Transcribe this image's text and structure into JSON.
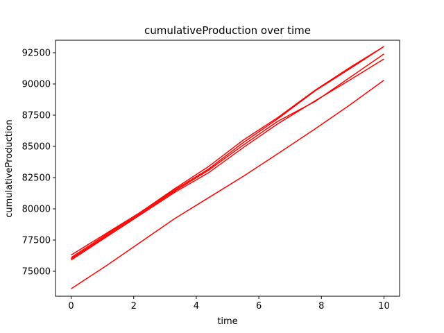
{
  "chart_data": {
    "type": "line",
    "title": "cumulativeProduction over time",
    "xlabel": "time",
    "ylabel": "cumulativeProduction",
    "xlim": [
      -0.5,
      10.5
    ],
    "ylim": [
      73000,
      93500
    ],
    "xticks": [
      0,
      2,
      4,
      6,
      8,
      10
    ],
    "xtick_labels": [
      "0",
      "2",
      "4",
      "6",
      "8",
      "10"
    ],
    "yticks": [
      75000,
      77500,
      80000,
      82500,
      85000,
      87500,
      90000,
      92500
    ],
    "ytick_labels": [
      "75000",
      "77500",
      "80000",
      "82500",
      "85000",
      "87500",
      "90000",
      "92500"
    ],
    "grid": false,
    "color": "#ff0000",
    "series": [
      {
        "x": [
          0,
          1.1,
          2.2,
          3.3,
          4.4,
          5.5,
          6.6,
          7.8,
          8.9,
          10
        ],
        "values": [
          76300,
          78000,
          79700,
          81500,
          83200,
          85300,
          87200,
          89450,
          91200,
          93000
        ]
      },
      {
        "x": [
          0,
          1.1,
          2.2,
          3.3,
          4.4,
          5.5,
          6.6,
          7.8,
          8.9,
          10
        ],
        "values": [
          76000,
          77800,
          79600,
          81400,
          83100,
          85100,
          87000,
          88600,
          90500,
          92400
        ]
      },
      {
        "x": [
          0,
          1.1,
          2.2,
          3.3,
          4.4,
          5.5,
          6.6,
          7.8,
          8.9,
          10
        ],
        "values": [
          75900,
          77700,
          79500,
          81300,
          82900,
          84900,
          86800,
          88650,
          90300,
          92000
        ]
      },
      {
        "x": [
          0,
          1.1,
          2.2,
          3.3,
          4.4,
          5.5,
          6.6,
          7.8,
          8.9,
          10
        ],
        "values": [
          76100,
          77900,
          79700,
          81600,
          83400,
          85500,
          87300,
          89500,
          91300,
          93000
        ]
      },
      {
        "x": [
          0,
          1.1,
          2.2,
          3.3,
          4.4,
          5.5,
          6.6,
          7.8,
          8.9,
          10
        ],
        "values": [
          73600,
          75400,
          77300,
          79200,
          80900,
          82600,
          84400,
          86400,
          88300,
          90300
        ]
      }
    ]
  }
}
